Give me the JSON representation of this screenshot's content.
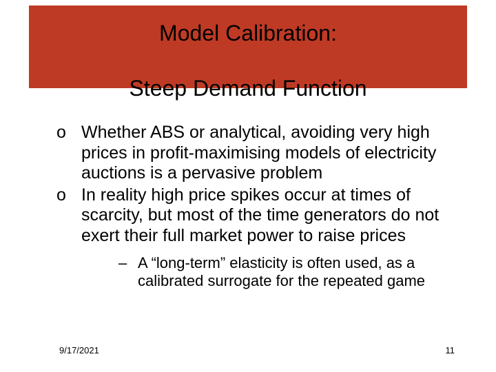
{
  "colors": {
    "title_bg": "#bf3a24",
    "title_text": "#000000",
    "body_text": "#000000",
    "background": "#ffffff"
  },
  "typography": {
    "title_fontsize_pt": 24,
    "body_fontsize_pt": 19,
    "sub_fontsize_pt": 17,
    "footer_fontsize_pt": 10,
    "font_family": "Arial"
  },
  "title": {
    "line1": "Model Calibration:",
    "line2": "Steep Demand Function"
  },
  "bullets": [
    {
      "text": "Whether ABS or analytical, avoiding very high prices in profit-maximising models of electricity auctions is a pervasive problem"
    },
    {
      "text": "In reality high price spikes occur at times of scarcity, but most of the time generators do not exert their full market power to raise prices"
    }
  ],
  "sub_bullets": [
    {
      "text": "A “long-term” elasticity is often used, as a calibrated surrogate for the repeated game"
    }
  ],
  "footer": {
    "date": "9/17/2021",
    "page": "11"
  }
}
